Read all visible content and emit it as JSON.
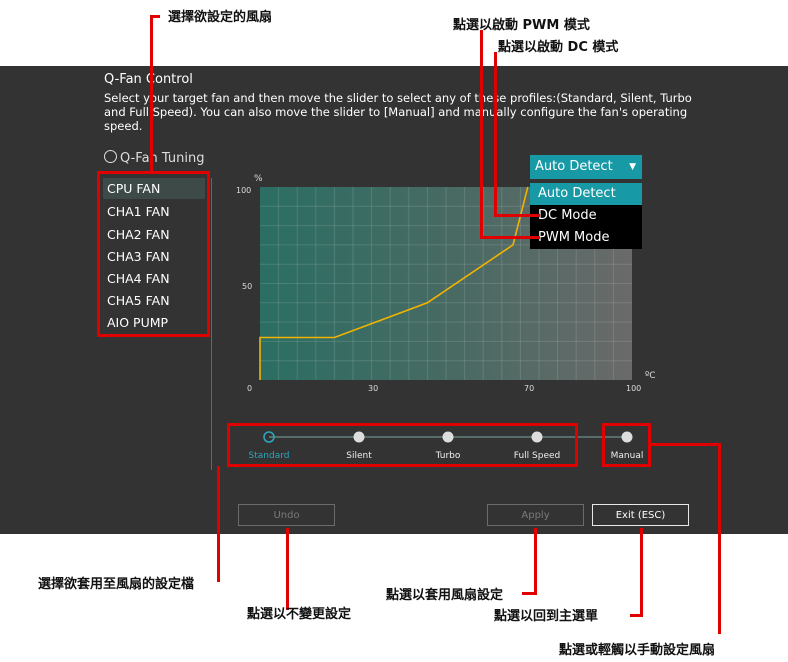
{
  "header": {
    "title": "Q-Fan Control",
    "description": "Select your target fan and then move the slider to select any of these profiles:(Standard, Silent, Turbo and Full Speed). You can also move the slider to [Manual] and manually configure the fan's operating speed."
  },
  "tuning": {
    "title": "Q-Fan Tuning",
    "icon": "fan-icon"
  },
  "fans": [
    "CPU FAN",
    "CHA1 FAN",
    "CHA2 FAN",
    "CHA3 FAN",
    "CHA4 FAN",
    "CHA5 FAN",
    "AIO PUMP"
  ],
  "selected_fan": "CPU FAN",
  "mode_select": {
    "value": "Auto Detect",
    "options": [
      "Auto Detect",
      "DC Mode",
      "PWM Mode"
    ],
    "highlighted": "Auto Detect"
  },
  "chart": {
    "y_unit": "%",
    "x_unit": "ºC",
    "y_ticks": [
      "100",
      "50",
      "0"
    ],
    "x_ticks": [
      "30",
      "70",
      "100"
    ]
  },
  "chart_data": {
    "type": "line",
    "x_range": [
      0,
      100
    ],
    "y_range": [
      0,
      100
    ],
    "points": [
      [
        0,
        0
      ],
      [
        0,
        22
      ],
      [
        20,
        22
      ],
      [
        45,
        40
      ],
      [
        68,
        70
      ],
      [
        72,
        100
      ]
    ]
  },
  "profiles": {
    "items": [
      "Standard",
      "Silent",
      "Turbo",
      "Full Speed",
      "Manual"
    ],
    "selected": "Standard"
  },
  "buttons": {
    "undo": "Undo",
    "apply": "Apply",
    "exit": "Exit (ESC)"
  },
  "callouts": {
    "select_fan": "選擇欲設定的風扇",
    "pwm_mode": "點選以啟動 PWM 模式",
    "dc_mode": "點選以啟動 DC 模式",
    "profile": "選擇欲套用至風扇的設定檔",
    "undo": "點選以不變更設定",
    "apply": "點選以套用風扇設定",
    "exit": "點選以回到主選單",
    "manual": "點選或輕觸以手動設定風扇"
  },
  "colors": {
    "accent": "#179aa5",
    "callout_red": "#e00000",
    "curve": "#f0b400"
  }
}
